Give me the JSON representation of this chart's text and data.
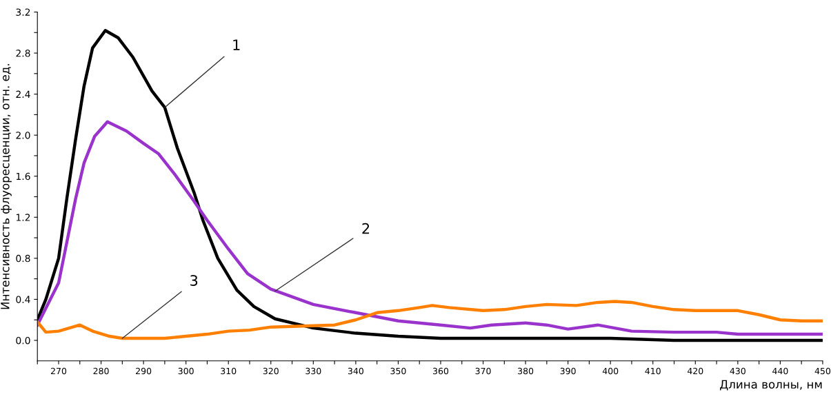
{
  "chart_data": {
    "type": "line",
    "xlabel": "Длина волны, нм",
    "ylabel": "Интенсивность флуоресценции, отн. ед.",
    "xlim": [
      265,
      450
    ],
    "ylim": [
      -0.2,
      3.2
    ],
    "xticks": [
      {
        "value": 265,
        "label": null
      },
      270,
      {
        "value": 275,
        "label": null
      },
      280,
      {
        "value": 285,
        "label": null
      },
      290,
      {
        "value": 295,
        "label": null
      },
      300,
      {
        "value": 305,
        "label": null
      },
      310,
      {
        "value": 315,
        "label": null
      },
      320,
      {
        "value": 325,
        "label": null
      },
      330,
      {
        "value": 335,
        "label": null
      },
      340,
      {
        "value": 345,
        "label": null
      },
      350,
      {
        "value": 355,
        "label": null
      },
      360,
      {
        "value": 365,
        "label": null
      },
      370,
      {
        "value": 375,
        "label": null
      },
      380,
      {
        "value": 385,
        "label": null
      },
      390,
      {
        "value": 395,
        "label": null
      },
      400,
      {
        "value": 405,
        "label": null
      },
      410,
      {
        "value": 415,
        "label": null
      },
      420,
      {
        "value": 425,
        "label": null
      },
      430,
      {
        "value": 435,
        "label": null
      },
      440,
      {
        "value": 445,
        "label": null
      },
      450
    ],
    "yticks": [
      {
        "value": 0,
        "label": "0.0"
      },
      {
        "value": 0.2,
        "label": null
      },
      0.4,
      {
        "value": 0.6,
        "label": null
      },
      0.8,
      {
        "value": 1.0,
        "label": null
      },
      1.2,
      {
        "value": 1.4,
        "label": null
      },
      1.6,
      {
        "value": 1.8,
        "label": null
      },
      {
        "value": 2.0,
        "label": "2.0"
      },
      {
        "value": 2.2,
        "label": null
      },
      2.4,
      {
        "value": 2.6,
        "label": null
      },
      2.8,
      {
        "value": 3.0,
        "label": null
      },
      3.2
    ],
    "grid": false,
    "legend": false,
    "marker": "none",
    "line_style": "solid",
    "series": [
      {
        "color": "#000000",
        "x": [
          265,
          267,
          270,
          272,
          274,
          276,
          278,
          281,
          284,
          287.5,
          292,
          295,
          298,
          302,
          304,
          307.5,
          312,
          316,
          321,
          325,
          330,
          340,
          350,
          360,
          380,
          400,
          415,
          430,
          450
        ],
        "values": [
          0.2,
          0.4,
          0.8,
          1.4,
          1.96,
          2.48,
          2.85,
          3.02,
          2.95,
          2.76,
          2.43,
          2.27,
          1.87,
          1.43,
          1.17,
          0.8,
          0.49,
          0.33,
          0.21,
          0.17,
          0.12,
          0.07,
          0.04,
          0.02,
          0.02,
          0.02,
          0.0,
          0.0,
          0.0
        ]
      },
      {
        "color": "#9933cc",
        "x": [
          265,
          270,
          274,
          276,
          278.5,
          281.5,
          286,
          290,
          293.5,
          297.5,
          301.5,
          305,
          310,
          314.5,
          320,
          330,
          340,
          350,
          360,
          367,
          372,
          380,
          385,
          390,
          397,
          405,
          415,
          425,
          430,
          450
        ],
        "values": [
          0.15,
          0.56,
          1.38,
          1.73,
          1.99,
          2.13,
          2.04,
          1.92,
          1.82,
          1.61,
          1.38,
          1.17,
          0.89,
          0.65,
          0.5,
          0.35,
          0.27,
          0.19,
          0.15,
          0.12,
          0.15,
          0.17,
          0.15,
          0.11,
          0.15,
          0.09,
          0.08,
          0.08,
          0.06,
          0.06
        ]
      },
      {
        "color": "#ff8000",
        "x": [
          265,
          267,
          270,
          275,
          278,
          282,
          285,
          295,
          300,
          305,
          310,
          315,
          320,
          335,
          340,
          345,
          350,
          355,
          358,
          362,
          370,
          375,
          380,
          385,
          392,
          397,
          401,
          405,
          410,
          415,
          420,
          430,
          435,
          440,
          445,
          450
        ],
        "values": [
          0.18,
          0.08,
          0.09,
          0.15,
          0.09,
          0.04,
          0.02,
          0.02,
          0.04,
          0.06,
          0.09,
          0.1,
          0.13,
          0.15,
          0.2,
          0.27,
          0.29,
          0.32,
          0.34,
          0.32,
          0.29,
          0.3,
          0.33,
          0.35,
          0.34,
          0.37,
          0.38,
          0.37,
          0.33,
          0.3,
          0.29,
          0.29,
          0.25,
          0.2,
          0.19,
          0.19
        ]
      }
    ],
    "annotations": [
      {
        "text": "1",
        "x": 295,
        "y": 2.27
      },
      {
        "text": "2",
        "x": 321,
        "y": 0.48
      },
      {
        "text": "3",
        "x": 285,
        "y": 0.02
      }
    ]
  }
}
